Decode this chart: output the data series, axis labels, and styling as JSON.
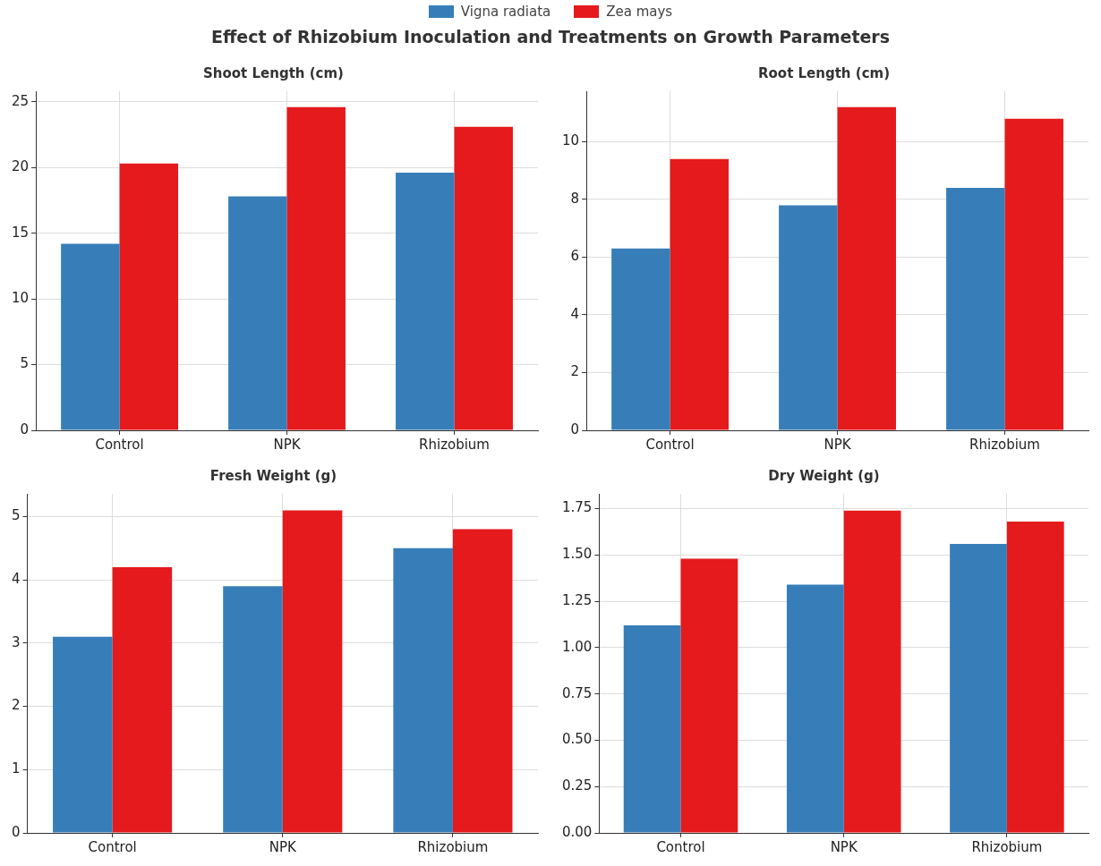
{
  "chart_data": [
    {
      "type": "bar",
      "title": "Shoot Length (cm)",
      "annotations": [
        "Effect of Rhizobium Inoculation and Treatments on Growth Parameters"
      ],
      "legend": "top",
      "grid": true,
      "categories": [
        "Control",
        "NPK",
        "Rhizobium"
      ],
      "ylim": [
        0,
        25.8
      ],
      "yticks": [
        0,
        5,
        10,
        15,
        20,
        25
      ],
      "series": [
        {
          "name": "Vigna radiata",
          "color": "#377eb8",
          "values": [
            14.2,
            17.8,
            19.6
          ]
        },
        {
          "name": "Zea mays",
          "color": "#e41a1c",
          "values": [
            20.3,
            24.6,
            23.1
          ]
        }
      ]
    },
    {
      "type": "bar",
      "title": "Root Length (cm)",
      "grid": true,
      "categories": [
        "Control",
        "NPK",
        "Rhizobium"
      ],
      "ylim": [
        0,
        11.75
      ],
      "yticks": [
        0,
        2,
        4,
        6,
        8,
        10
      ],
      "series": [
        {
          "color": "#377eb8",
          "values": [
            6.3,
            7.8,
            8.4
          ]
        },
        {
          "color": "#e41a1c",
          "values": [
            9.4,
            11.2,
            10.8
          ]
        }
      ]
    },
    {
      "type": "bar",
      "title": "Fresh Weight (g)",
      "grid": true,
      "categories": [
        "Control",
        "NPK",
        "Rhizobium"
      ],
      "ylim": [
        0,
        5.36
      ],
      "yticks": [
        0,
        1,
        2,
        3,
        4,
        5
      ],
      "series": [
        {
          "color": "#377eb8",
          "values": [
            3.1,
            3.9,
            4.5
          ]
        },
        {
          "color": "#e41a1c",
          "values": [
            4.2,
            5.1,
            4.8
          ]
        }
      ]
    },
    {
      "type": "bar",
      "title": "Dry Weight (g)",
      "grid": true,
      "categories": [
        "Control",
        "NPK",
        "Rhizobium"
      ],
      "ylim": [
        0,
        1.83
      ],
      "yticks": [
        {
          "value": 0,
          "label": "0.00"
        },
        {
          "value": 0.25,
          "label": "0.25"
        },
        {
          "value": 0.5,
          "label": "0.50"
        },
        {
          "value": 0.75,
          "label": "0.75"
        },
        {
          "value": 1,
          "label": "1.00"
        },
        {
          "value": 1.25,
          "label": "1.25"
        },
        {
          "value": 1.5,
          "label": "1.50"
        },
        {
          "value": 1.75,
          "label": "1.75"
        }
      ],
      "series": [
        {
          "color": "#377eb8",
          "values": [
            1.12,
            1.34,
            1.56
          ]
        },
        {
          "color": "#e41a1c",
          "values": [
            1.48,
            1.74,
            1.68
          ]
        }
      ]
    }
  ]
}
